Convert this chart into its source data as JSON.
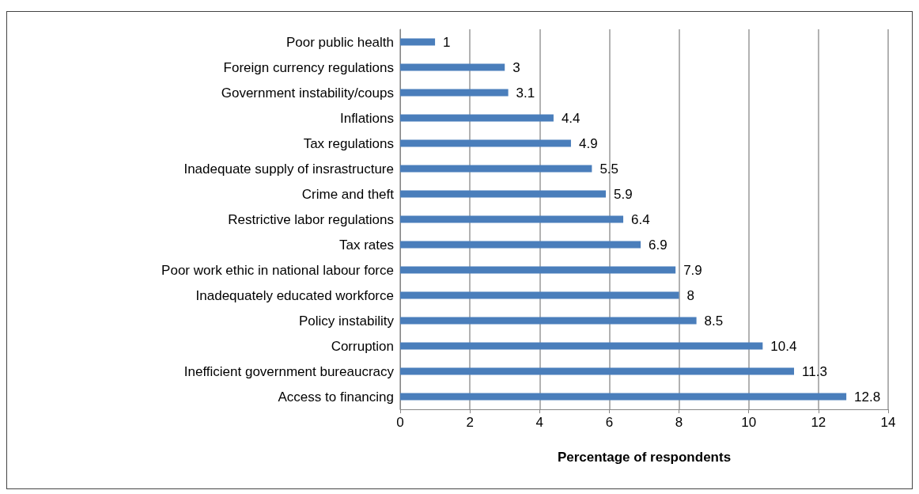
{
  "chart_data": {
    "type": "bar",
    "orientation": "horizontal",
    "xlabel": "Percentage of respondents",
    "categories": [
      "Poor public health",
      "Foreign currency regulations",
      "Government instability/coups",
      "Inflations",
      "Tax regulations",
      "Inadequate supply of insrastructure",
      "Crime and theft",
      "Restrictive labor regulations",
      "Tax rates",
      "Poor work ethic in national labour force",
      "Inadequately educated workforce",
      "Policy instability",
      "Corruption",
      "Inefficient government bureaucracy",
      "Access to financing"
    ],
    "values": [
      1,
      3,
      3.1,
      4.4,
      4.9,
      5.5,
      5.9,
      6.4,
      6.9,
      7.9,
      8,
      8.5,
      10.4,
      11.3,
      12.8
    ],
    "color": "#4a7ebb",
    "xlim": [
      0,
      14
    ],
    "xticks": [
      0,
      2,
      4,
      6,
      8,
      10,
      12,
      14
    ],
    "grid": "x",
    "data_labels": true
  }
}
